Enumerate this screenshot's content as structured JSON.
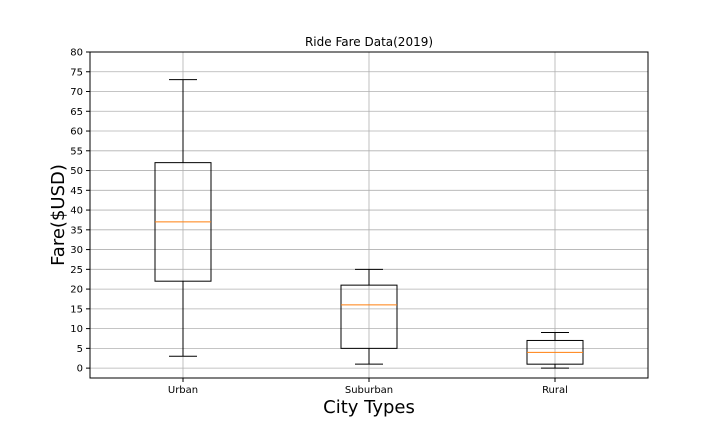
{
  "chart_data": {
    "type": "box",
    "title": "Ride Fare Data(2019)",
    "xlabel": "City Types",
    "ylabel": "Fare($USD)",
    "ylim": [
      -2.5,
      80
    ],
    "yticks": [
      0,
      5,
      10,
      15,
      20,
      25,
      30,
      35,
      40,
      45,
      50,
      55,
      60,
      65,
      70,
      75,
      80
    ],
    "grid": true,
    "categories": [
      "Urban",
      "Suburban",
      "Rural"
    ],
    "boxes": [
      {
        "category": "Urban",
        "whisker_low": 3,
        "q1": 22,
        "median": 37,
        "q3": 52,
        "whisker_high": 73
      },
      {
        "category": "Suburban",
        "whisker_low": 1,
        "q1": 5,
        "median": 16,
        "q3": 21,
        "whisker_high": 25
      },
      {
        "category": "Rural",
        "whisker_low": 0,
        "q1": 1,
        "median": 4,
        "q3": 7,
        "whisker_high": 9
      }
    ],
    "colors": {
      "box": "#000000",
      "median": "#ff7f0e",
      "grid": "#b0b0b0"
    }
  }
}
